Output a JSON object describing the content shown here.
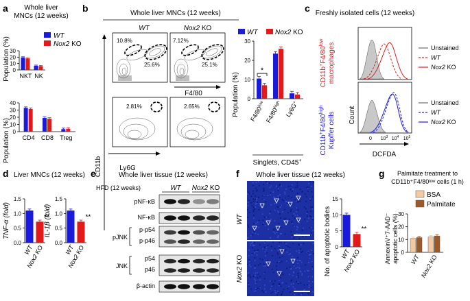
{
  "panels": {
    "a": {
      "letter": "a",
      "title1": "Whole liver",
      "title2": "MNCs (12 weeks)",
      "legend": [
        "WT",
        "Nox2 KO"
      ],
      "ylabel": "Population (%)"
    },
    "b": {
      "letter": "b",
      "title": "Whole liver MNCs (12 weeks)",
      "col_wt": "WT",
      "col_ko": "KO",
      "col_ko_prefix": "Nox2",
      "gate_labels": [
        "10.8%",
        "25.6%",
        "7.12%",
        "25.1%",
        "2.81%",
        "2.65%"
      ],
      "x_top": "F4/80",
      "x_bottom": "Ly6G",
      "y_axis": "CD11b",
      "bar_ylabel": "Population (%)",
      "bar_xsub": "Singlets, CD45",
      "sig": "*"
    },
    "c": {
      "letter": "c",
      "title": "Freshly isolated cells (12 weeks)",
      "top_ylabel1": "CD11b",
      "top_ylabel2": "macrophages",
      "bottom_ylabel1": "CD11b",
      "bottom_ylabel2": "Kupffer cells",
      "count_label": "Count",
      "xlabel": "DCFDA",
      "sup_low": "low",
      "sup_high": "high",
      "sup_plus": "+",
      "f480": "F4/80",
      "legend": [
        "Unstained",
        "WT",
        "Nox2 KO"
      ],
      "ticks": [
        "0",
        "10",
        "10",
        "10"
      ],
      "tick_exp": [
        "",
        "3",
        "4",
        "5"
      ]
    },
    "d": {
      "letter": "d",
      "title": "Liver MNCs (12 weeks)",
      "ylabel1": "TNF-α (fold)",
      "ylabel2": "IL-1β (fold)",
      "sig": "**",
      "xcats": [
        "WT",
        "Nox2 KO"
      ]
    },
    "e": {
      "letter": "e",
      "title": "Whole liver tissue (12 weeks)",
      "hfd": "HFD (12 weeks)",
      "col_wt": "WT",
      "col_ko": "Nox2 KO",
      "row_labels": [
        "pNF-κB",
        "NF-κB",
        "p-p54",
        "p-p46",
        "p54",
        "p46",
        "β-actin"
      ],
      "group_labels": [
        "pJNK",
        "JNK"
      ]
    },
    "f": {
      "letter": "f",
      "title": "Whole liver tissue (12 weeks)",
      "row_wt": "WT",
      "row_ko": "Nox2 KO",
      "ylabel": "No. of apoptotic bodies",
      "sig": "**",
      "xcats": [
        "WT",
        "Nox2 KO"
      ]
    },
    "g": {
      "letter": "g",
      "title1": "Palmitate treatment to",
      "title2": "CD11b⁺F4/80ˡᵒʷ cells (1 h)",
      "legend": [
        "BSA",
        "Palmitate"
      ],
      "ylabel1": "AnnexinV⁺7-AAD⁻",
      "ylabel2": "apoptotic cells (%)",
      "xcats": [
        "WT",
        "Nox2 KO"
      ]
    }
  },
  "colors": {
    "wt": "#1a1adb",
    "ko": "#e31a1a",
    "bsa": "#f3c9a4",
    "palm": "#9c5a2a",
    "gray": "#a8a8a8"
  },
  "chart_data": [
    {
      "id": "a-top",
      "type": "bar",
      "categories": [
        "NKT",
        "NK"
      ],
      "ylim": [
        0,
        30
      ],
      "yticks": [
        0,
        10,
        20,
        30
      ],
      "series": [
        {
          "name": "WT",
          "values": [
            19.5,
            6.5
          ]
        },
        {
          "name": "Nox2 KO",
          "values": [
            18,
            6
          ]
        }
      ]
    },
    {
      "id": "a-bottom",
      "type": "bar",
      "categories": [
        "CD4",
        "CD8",
        "Treg"
      ],
      "ylim": [
        0,
        40
      ],
      "yticks": [
        0,
        10,
        20,
        30,
        40
      ],
      "series": [
        {
          "name": "WT",
          "values": [
            33,
            19,
            3.5
          ]
        },
        {
          "name": "Nox2 KO",
          "values": [
            31.5,
            18,
            4
          ]
        }
      ]
    },
    {
      "id": "b",
      "type": "bar",
      "categories": [
        "F4/80low",
        "F4/80high",
        "Ly6G+"
      ],
      "ylim": [
        0,
        30
      ],
      "yticks": [
        0,
        10,
        20,
        30
      ],
      "series": [
        {
          "name": "WT",
          "values": [
            10.5,
            23.5,
            2.8
          ]
        },
        {
          "name": "Nox2 KO",
          "values": [
            7,
            26,
            2.2
          ]
        }
      ]
    },
    {
      "id": "d-tnf",
      "type": "bar",
      "categories": [
        "WT",
        "Nox2 KO"
      ],
      "ylim": [
        0,
        1.5
      ],
      "yticks": [
        0,
        0.5,
        1.0,
        1.5
      ],
      "values": [
        1.1,
        0.72
      ],
      "ylabel": "TNF-α (fold)"
    },
    {
      "id": "d-il1b",
      "type": "bar",
      "categories": [
        "WT",
        "Nox2 KO"
      ],
      "ylim": [
        0,
        1.5
      ],
      "yticks": [
        0,
        0.5,
        1.0,
        1.5
      ],
      "values": [
        1.1,
        0.72
      ],
      "ylabel": "IL-1β (fold)"
    },
    {
      "id": "f",
      "type": "bar",
      "categories": [
        "WT",
        "Nox2 KO"
      ],
      "ylim": [
        0,
        15
      ],
      "yticks": [
        0,
        5,
        10,
        15
      ],
      "values": [
        10,
        4
      ],
      "ylabel": "No. of apoptotic bodies"
    },
    {
      "id": "g",
      "type": "bar",
      "categories": [
        "WT",
        "Nox2 KO"
      ],
      "ylim": [
        0,
        30
      ],
      "yticks": [
        0,
        10,
        20,
        30
      ],
      "series": [
        {
          "name": "BSA",
          "values": [
            10.8,
            12
          ]
        },
        {
          "name": "Palmitate",
          "values": [
            11.5,
            12.8
          ]
        }
      ]
    }
  ]
}
